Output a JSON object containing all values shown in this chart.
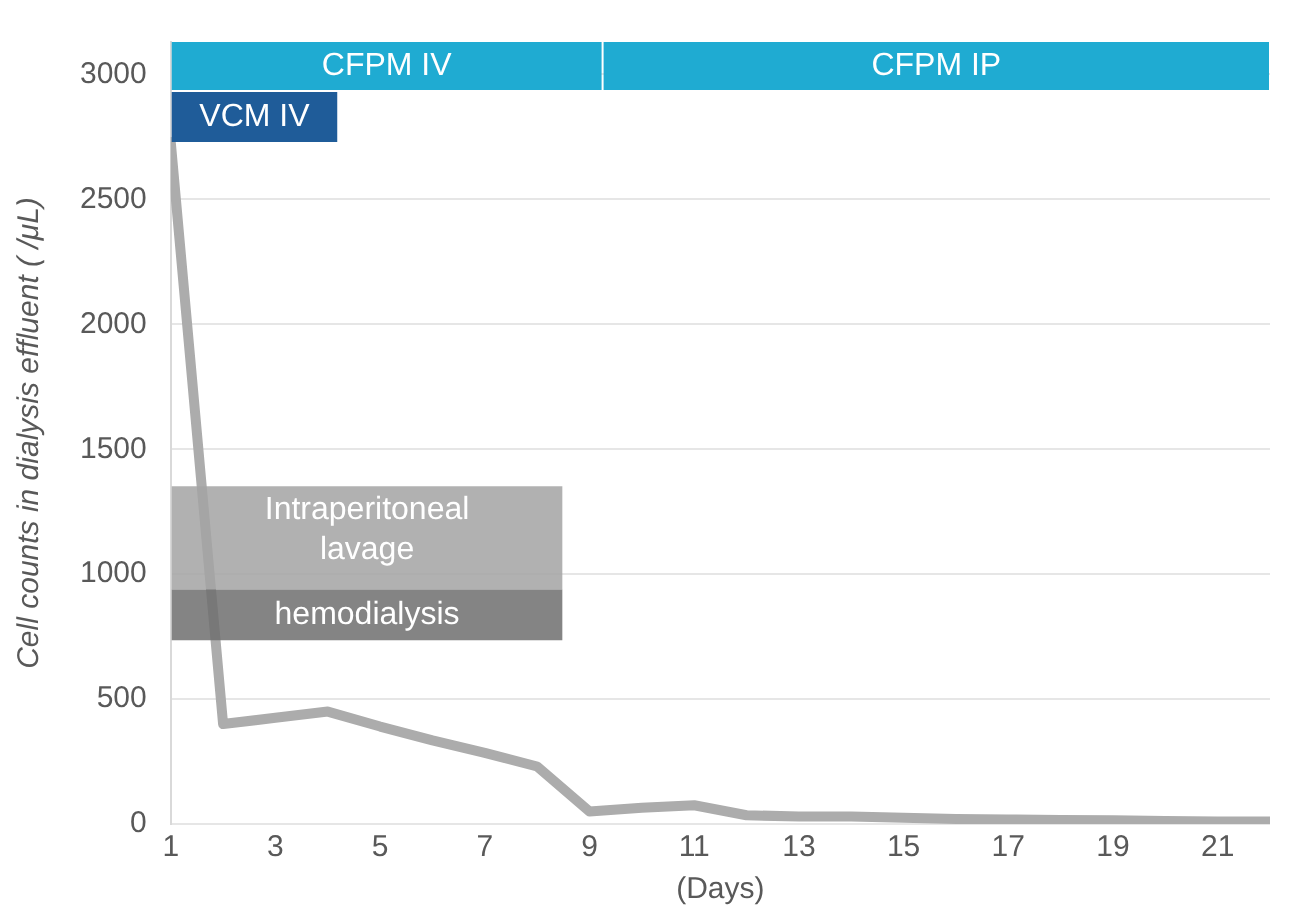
{
  "chart_data": {
    "type": "line",
    "xlabel": "(Days)",
    "ylabel": "Cell counts in dialysis effluent ( /μL)",
    "x": [
      1,
      2,
      3,
      4,
      5,
      6,
      7,
      8,
      9,
      10,
      11,
      12,
      13,
      14,
      15,
      16,
      17,
      18,
      19,
      20,
      21,
      22
    ],
    "series": [
      {
        "color": "#acacac",
        "values": [
          2730,
          400,
          425,
          450,
          390,
          335,
          285,
          230,
          50,
          65,
          75,
          35,
          30,
          30,
          25,
          20,
          18,
          16,
          15,
          12,
          10,
          10
        ]
      }
    ],
    "xlim": [
      1,
      22
    ],
    "xticks": [
      1,
      3,
      5,
      7,
      9,
      11,
      13,
      15,
      17,
      19,
      21
    ],
    "ylim": [
      0,
      3130
    ],
    "yticks": [
      0,
      500,
      1000,
      1500,
      2000,
      2500,
      3000
    ],
    "grid": "y",
    "legend": false,
    "marker": "none",
    "line_style": "solid",
    "bands": [
      {
        "axis": "x",
        "from": 1,
        "to": 9.25,
        "label": "CFPM IV",
        "color": "#1fabd2"
      },
      {
        "axis": "x",
        "from": 9.25,
        "to": 22,
        "label": "CFPM IP",
        "color": "#1fabd2"
      },
      {
        "axis": "x",
        "from": 1,
        "to": 4.2,
        "label": "VCM IV",
        "color": "#1f5c99"
      },
      {
        "axis": "x",
        "from": 1,
        "to": 8.5,
        "label": "Intraperitoneal\nlavage",
        "color": "#a3a3a3"
      },
      {
        "axis": "x",
        "from": 1,
        "to": 8.5,
        "label": "hemodialysis",
        "color": "#6f6f6f"
      }
    ]
  }
}
